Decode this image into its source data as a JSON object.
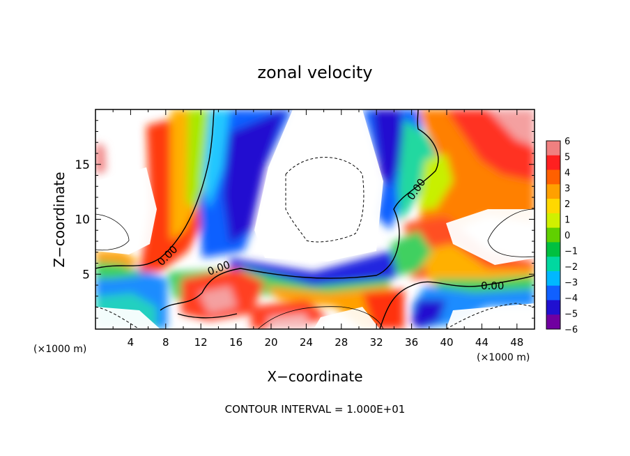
{
  "chart_data": {
    "type": "heatmap",
    "title": "zonal velocity",
    "xlabel": "X−coordinate",
    "ylabel": "Z−coordinate",
    "x_unit_left": "(×1000 m)",
    "x_unit_right": "(×1000 m)",
    "footer": "CONTOUR INTERVAL = 1.000E+01",
    "xlim": [
      0,
      50
    ],
    "ylim": [
      0,
      20
    ],
    "x_ticks": [
      "4",
      "8",
      "12",
      "16",
      "20",
      "24",
      "28",
      "32",
      "36",
      "40",
      "44",
      "48"
    ],
    "y_ticks": [
      "5",
      "10",
      "15"
    ],
    "colorbar": {
      "labels": [
        "6",
        "5",
        "4",
        "3",
        "2",
        "1",
        "0",
        "−1",
        "−2",
        "−3",
        "−4",
        "−5",
        "−6"
      ],
      "colors": [
        "#f08080",
        "#ff2020",
        "#ff6000",
        "#ffa000",
        "#ffd800",
        "#d0f000",
        "#60d000",
        "#00c040",
        "#00d8a0",
        "#00b8ff",
        "#1060ff",
        "#2010d0",
        "#7000a0"
      ]
    },
    "contour_labels": [
      "0.00",
      "0.00",
      "0.00",
      "0.00"
    ]
  }
}
